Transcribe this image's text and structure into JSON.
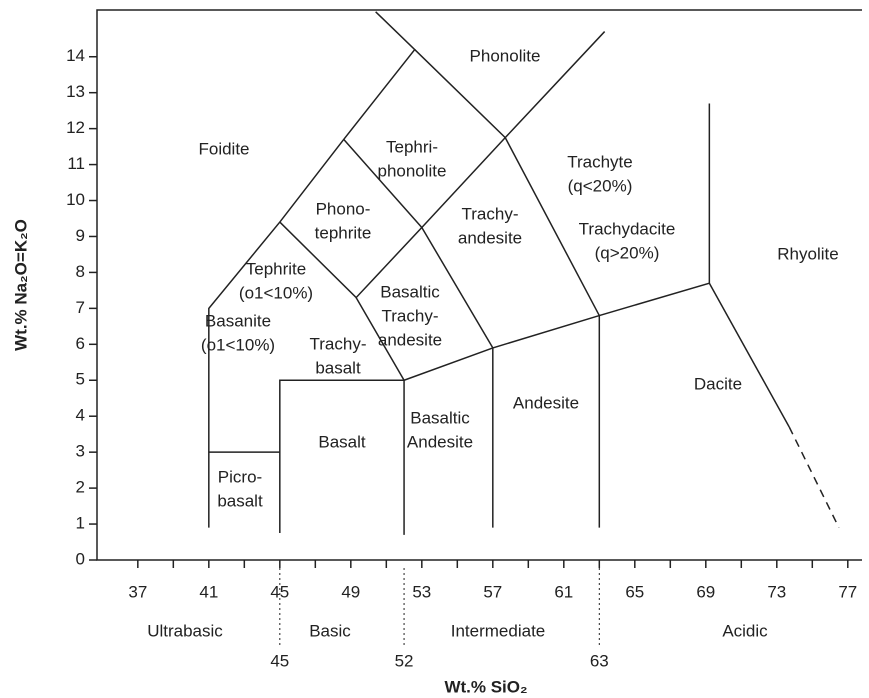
{
  "chart_data": {
    "type": "tas",
    "xlabel": "Wt.% SiO₂",
    "ylabel": "Wt.% Na₂O=K₂O",
    "xlim": [
      34.7,
      77.8
    ],
    "ylim": [
      0,
      15.3
    ],
    "xticks": [
      37,
      41,
      45,
      49,
      53,
      57,
      61,
      65,
      69,
      73,
      77
    ],
    "xminorticks": [
      39,
      43,
      47,
      51,
      55,
      59,
      63,
      67,
      71,
      75
    ],
    "yticks": [
      0,
      1,
      2,
      3,
      4,
      5,
      6,
      7,
      8,
      9,
      10,
      11,
      12,
      13,
      14
    ],
    "silica_classes": [
      "Ultrabasic",
      "Basic",
      "Intermediate",
      "Acidic"
    ],
    "class_bounds": [
      45,
      52,
      63
    ],
    "boundaries": [
      {
        "x": [
          41,
          41,
          45,
          48.6,
          52.6,
          50.4
        ],
        "y": [
          0.9,
          7,
          9.4,
          11.7,
          14.2,
          15.25
        ]
      },
      {
        "x": [
          52.6,
          57.7,
          63.3
        ],
        "y": [
          14.2,
          11.75,
          14.7
        ]
      },
      {
        "x": [
          41,
          45
        ],
        "y": [
          3,
          3
        ]
      },
      {
        "x": [
          45,
          45,
          52
        ],
        "y": [
          0.75,
          5,
          5
        ]
      },
      {
        "x": [
          45,
          49.3,
          53,
          48.6
        ],
        "y": [
          9.4,
          7.3,
          9.25,
          11.7
        ]
      },
      {
        "x": [
          49.3,
          52
        ],
        "y": [
          7.3,
          5
        ]
      },
      {
        "x": [
          53,
          57.7
        ],
        "y": [
          9.25,
          11.75
        ]
      },
      {
        "x": [
          53,
          57
        ],
        "y": [
          9.25,
          5.9
        ]
      },
      {
        "x": [
          57.7,
          63
        ],
        "y": [
          11.75,
          6.8
        ]
      },
      {
        "x": [
          52,
          57,
          63,
          69.2,
          69.2
        ],
        "y": [
          5,
          5.9,
          6.8,
          7.7,
          12.7
        ]
      },
      {
        "x": [
          69.2,
          73.7
        ],
        "y": [
          7.7,
          3.7
        ]
      },
      {
        "x": [
          52,
          52
        ],
        "y": [
          5,
          0.7
        ]
      },
      {
        "x": [
          57,
          57
        ],
        "y": [
          5.9,
          0.9
        ]
      },
      {
        "x": [
          63,
          63
        ],
        "y": [
          6.8,
          0.9
        ]
      }
    ],
    "dashed_boundaries": [
      {
        "x": [
          73.7,
          76.5
        ],
        "y": [
          3.7,
          0.9
        ]
      }
    ],
    "fields": [
      [
        "Phonolite"
      ],
      [
        "Foidite"
      ],
      [
        "Tephri-",
        "phonolite"
      ],
      [
        "Phono-",
        "tephrite"
      ],
      [
        "Trachyte",
        "(q<20%)"
      ],
      [
        "Trachydacite",
        "(q>20%)"
      ],
      [
        "Trachy-",
        "andesite"
      ],
      [
        "Rhyolite"
      ],
      [
        "Tephrite",
        "(o1<10%)"
      ],
      [
        "Basaltic",
        "Trachy-",
        "andesite"
      ],
      [
        "Basanite",
        "(o1<10%)"
      ],
      [
        "Trachy-",
        "basalt"
      ],
      [
        "Dacite"
      ],
      [
        "Andesite"
      ],
      [
        "Basaltic",
        "Andesite"
      ],
      [
        "Basalt"
      ],
      [
        "Picro-",
        "basalt"
      ]
    ]
  }
}
